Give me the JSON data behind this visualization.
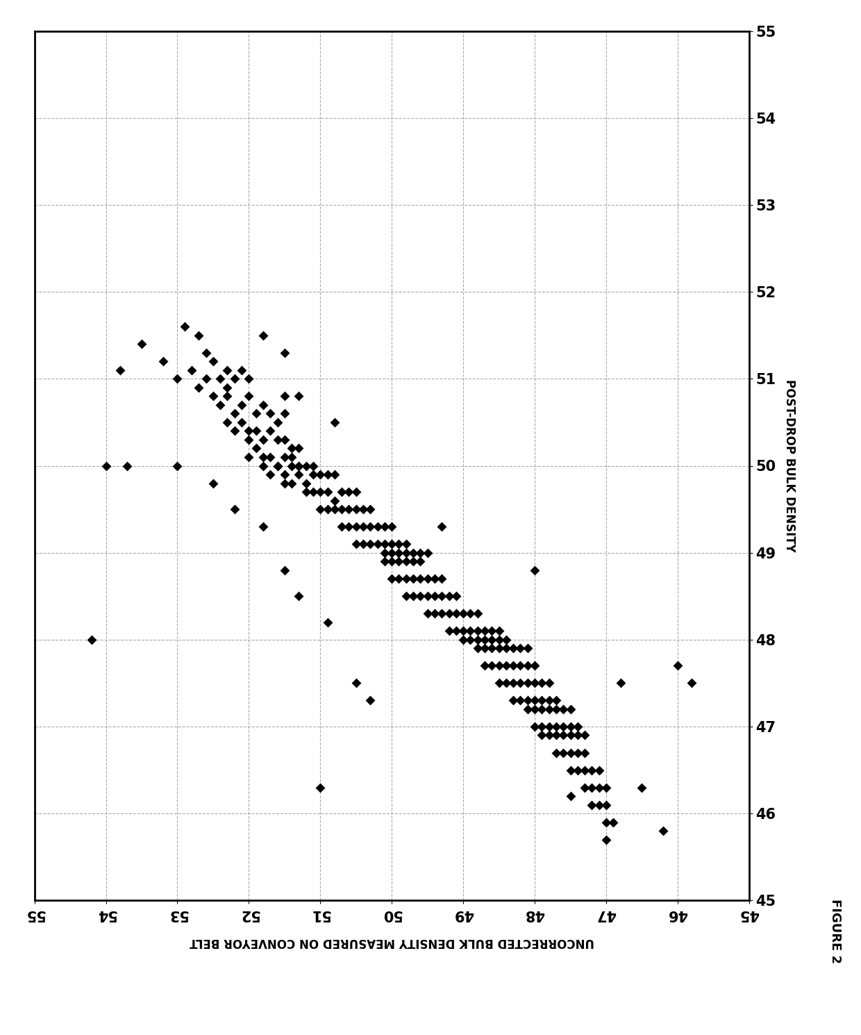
{
  "title": "FIGURE 2",
  "xlabel": "UNCORRECTED BULK DENSITY MEASURED ON CONVEYOR BELT",
  "ylabel": "POST-DROP BULK DENSITY",
  "ticks": [
    45,
    46,
    47,
    48,
    49,
    50,
    51,
    52,
    53,
    54,
    55
  ],
  "marker_color": "#000000",
  "background_color": "#ffffff",
  "grid_color": "#aaaaaa",
  "points": [
    [
      53.8,
      51.1
    ],
    [
      53.5,
      51.4
    ],
    [
      53.2,
      51.2
    ],
    [
      53.0,
      51.0
    ],
    [
      52.9,
      51.6
    ],
    [
      52.7,
      51.5
    ],
    [
      52.6,
      51.3
    ],
    [
      52.8,
      51.1
    ],
    [
      52.7,
      50.9
    ],
    [
      52.6,
      51.0
    ],
    [
      52.5,
      51.2
    ],
    [
      52.5,
      50.8
    ],
    [
      52.4,
      51.0
    ],
    [
      52.3,
      51.1
    ],
    [
      52.2,
      51.0
    ],
    [
      52.1,
      51.1
    ],
    [
      52.0,
      51.0
    ],
    [
      52.4,
      50.7
    ],
    [
      52.3,
      50.8
    ],
    [
      52.2,
      50.6
    ],
    [
      52.1,
      50.7
    ],
    [
      52.0,
      50.8
    ],
    [
      52.3,
      50.5
    ],
    [
      52.2,
      50.4
    ],
    [
      52.1,
      50.5
    ],
    [
      52.0,
      50.4
    ],
    [
      51.9,
      50.6
    ],
    [
      51.8,
      50.7
    ],
    [
      51.7,
      50.6
    ],
    [
      51.6,
      50.5
    ],
    [
      51.5,
      50.6
    ],
    [
      52.0,
      50.3
    ],
    [
      51.9,
      50.4
    ],
    [
      51.8,
      50.3
    ],
    [
      51.7,
      50.4
    ],
    [
      51.6,
      50.3
    ],
    [
      51.5,
      50.3
    ],
    [
      51.4,
      50.2
    ],
    [
      51.3,
      50.2
    ],
    [
      52.0,
      50.1
    ],
    [
      51.9,
      50.2
    ],
    [
      51.8,
      50.1
    ],
    [
      51.7,
      50.1
    ],
    [
      51.6,
      50.0
    ],
    [
      51.5,
      50.1
    ],
    [
      51.4,
      50.0
    ],
    [
      51.3,
      50.0
    ],
    [
      51.8,
      50.0
    ],
    [
      51.7,
      49.9
    ],
    [
      51.6,
      50.0
    ],
    [
      51.5,
      49.9
    ],
    [
      51.4,
      50.1
    ],
    [
      51.3,
      50.0
    ],
    [
      51.2,
      50.0
    ],
    [
      51.1,
      50.0
    ],
    [
      51.5,
      49.8
    ],
    [
      51.4,
      49.8
    ],
    [
      51.3,
      49.9
    ],
    [
      51.2,
      49.8
    ],
    [
      51.1,
      49.9
    ],
    [
      51.0,
      49.9
    ],
    [
      50.9,
      49.9
    ],
    [
      50.8,
      49.9
    ],
    [
      51.2,
      49.7
    ],
    [
      51.1,
      49.7
    ],
    [
      51.0,
      49.7
    ],
    [
      50.9,
      49.7
    ],
    [
      50.8,
      49.6
    ],
    [
      50.7,
      49.7
    ],
    [
      50.6,
      49.7
    ],
    [
      51.0,
      49.5
    ],
    [
      50.9,
      49.5
    ],
    [
      50.8,
      49.5
    ],
    [
      50.7,
      49.5
    ],
    [
      50.6,
      49.5
    ],
    [
      50.5,
      49.5
    ],
    [
      50.4,
      49.5
    ],
    [
      50.3,
      49.5
    ],
    [
      50.7,
      49.3
    ],
    [
      50.6,
      49.3
    ],
    [
      50.5,
      49.3
    ],
    [
      50.4,
      49.3
    ],
    [
      50.3,
      49.3
    ],
    [
      50.2,
      49.3
    ],
    [
      50.1,
      49.3
    ],
    [
      50.0,
      49.3
    ],
    [
      50.5,
      49.1
    ],
    [
      50.4,
      49.1
    ],
    [
      50.3,
      49.1
    ],
    [
      50.2,
      49.1
    ],
    [
      50.1,
      49.1
    ],
    [
      50.0,
      49.1
    ],
    [
      49.9,
      49.1
    ],
    [
      49.8,
      49.1
    ],
    [
      50.1,
      49.0
    ],
    [
      50.0,
      49.0
    ],
    [
      49.9,
      49.0
    ],
    [
      49.8,
      49.0
    ],
    [
      49.7,
      49.0
    ],
    [
      49.6,
      49.0
    ],
    [
      49.5,
      49.0
    ],
    [
      50.1,
      48.9
    ],
    [
      50.0,
      48.9
    ],
    [
      49.9,
      48.9
    ],
    [
      49.8,
      48.9
    ],
    [
      49.7,
      48.9
    ],
    [
      49.6,
      48.9
    ],
    [
      50.0,
      48.7
    ],
    [
      49.9,
      48.7
    ],
    [
      49.8,
      48.7
    ],
    [
      49.7,
      48.7
    ],
    [
      49.6,
      48.7
    ],
    [
      49.5,
      48.7
    ],
    [
      49.4,
      48.7
    ],
    [
      49.3,
      48.7
    ],
    [
      49.8,
      48.5
    ],
    [
      49.7,
      48.5
    ],
    [
      49.6,
      48.5
    ],
    [
      49.5,
      48.5
    ],
    [
      49.4,
      48.5
    ],
    [
      49.3,
      48.5
    ],
    [
      49.2,
      48.5
    ],
    [
      49.1,
      48.5
    ],
    [
      49.5,
      48.3
    ],
    [
      49.4,
      48.3
    ],
    [
      49.3,
      48.3
    ],
    [
      49.2,
      48.3
    ],
    [
      49.1,
      48.3
    ],
    [
      49.0,
      48.3
    ],
    [
      48.9,
      48.3
    ],
    [
      48.8,
      48.3
    ],
    [
      49.2,
      48.1
    ],
    [
      49.1,
      48.1
    ],
    [
      49.0,
      48.1
    ],
    [
      48.9,
      48.1
    ],
    [
      48.8,
      48.1
    ],
    [
      48.7,
      48.1
    ],
    [
      48.6,
      48.1
    ],
    [
      48.5,
      48.1
    ],
    [
      49.0,
      48.0
    ],
    [
      48.9,
      48.0
    ],
    [
      48.8,
      48.0
    ],
    [
      48.7,
      48.0
    ],
    [
      48.6,
      48.0
    ],
    [
      48.5,
      48.0
    ],
    [
      48.4,
      48.0
    ],
    [
      48.8,
      47.9
    ],
    [
      48.7,
      47.9
    ],
    [
      48.6,
      47.9
    ],
    [
      48.5,
      47.9
    ],
    [
      48.4,
      47.9
    ],
    [
      48.3,
      47.9
    ],
    [
      48.2,
      47.9
    ],
    [
      48.1,
      47.9
    ],
    [
      48.7,
      47.7
    ],
    [
      48.6,
      47.7
    ],
    [
      48.5,
      47.7
    ],
    [
      48.4,
      47.7
    ],
    [
      48.3,
      47.7
    ],
    [
      48.2,
      47.7
    ],
    [
      48.1,
      47.7
    ],
    [
      48.0,
      47.7
    ],
    [
      48.5,
      47.5
    ],
    [
      48.4,
      47.5
    ],
    [
      48.3,
      47.5
    ],
    [
      48.2,
      47.5
    ],
    [
      48.1,
      47.5
    ],
    [
      48.0,
      47.5
    ],
    [
      47.9,
      47.5
    ],
    [
      47.8,
      47.5
    ],
    [
      48.3,
      47.3
    ],
    [
      48.2,
      47.3
    ],
    [
      48.1,
      47.3
    ],
    [
      48.0,
      47.3
    ],
    [
      47.9,
      47.3
    ],
    [
      47.8,
      47.3
    ],
    [
      47.7,
      47.3
    ],
    [
      48.1,
      47.2
    ],
    [
      48.0,
      47.2
    ],
    [
      47.9,
      47.2
    ],
    [
      47.8,
      47.2
    ],
    [
      47.7,
      47.2
    ],
    [
      47.6,
      47.2
    ],
    [
      47.5,
      47.2
    ],
    [
      48.0,
      47.0
    ],
    [
      47.9,
      47.0
    ],
    [
      47.8,
      47.0
    ],
    [
      47.7,
      47.0
    ],
    [
      47.6,
      47.0
    ],
    [
      47.5,
      47.0
    ],
    [
      47.4,
      47.0
    ],
    [
      47.9,
      46.9
    ],
    [
      47.8,
      46.9
    ],
    [
      47.7,
      46.9
    ],
    [
      47.6,
      46.9
    ],
    [
      47.5,
      46.9
    ],
    [
      47.4,
      46.9
    ],
    [
      47.3,
      46.9
    ],
    [
      47.7,
      46.7
    ],
    [
      47.6,
      46.7
    ],
    [
      47.5,
      46.7
    ],
    [
      47.4,
      46.7
    ],
    [
      47.3,
      46.7
    ],
    [
      47.5,
      46.5
    ],
    [
      47.4,
      46.5
    ],
    [
      47.3,
      46.5
    ],
    [
      47.2,
      46.5
    ],
    [
      47.1,
      46.5
    ],
    [
      47.3,
      46.3
    ],
    [
      47.2,
      46.3
    ],
    [
      47.1,
      46.3
    ],
    [
      47.0,
      46.3
    ],
    [
      47.2,
      46.1
    ],
    [
      47.1,
      46.1
    ],
    [
      47.0,
      46.1
    ],
    [
      47.0,
      45.9
    ],
    [
      46.9,
      45.9
    ],
    [
      47.0,
      45.7
    ],
    [
      50.5,
      49.7
    ],
    [
      49.3,
      49.3
    ],
    [
      51.5,
      50.8
    ],
    [
      51.3,
      50.8
    ],
    [
      50.8,
      50.5
    ],
    [
      53.7,
      50.0
    ],
    [
      54.0,
      50.0
    ],
    [
      54.2,
      48.0
    ],
    [
      52.2,
      49.5
    ],
    [
      51.8,
      49.3
    ],
    [
      51.5,
      48.8
    ],
    [
      51.3,
      48.5
    ],
    [
      50.9,
      48.2
    ],
    [
      50.5,
      47.5
    ],
    [
      50.3,
      47.3
    ],
    [
      51.0,
      46.3
    ],
    [
      48.0,
      48.8
    ],
    [
      46.8,
      47.5
    ],
    [
      47.5,
      46.2
    ],
    [
      46.0,
      47.7
    ],
    [
      46.5,
      46.3
    ],
    [
      46.2,
      45.8
    ],
    [
      45.8,
      47.5
    ],
    [
      53.0,
      50.0
    ],
    [
      52.5,
      49.8
    ],
    [
      51.8,
      51.5
    ],
    [
      51.5,
      51.3
    ],
    [
      52.3,
      50.9
    ]
  ]
}
